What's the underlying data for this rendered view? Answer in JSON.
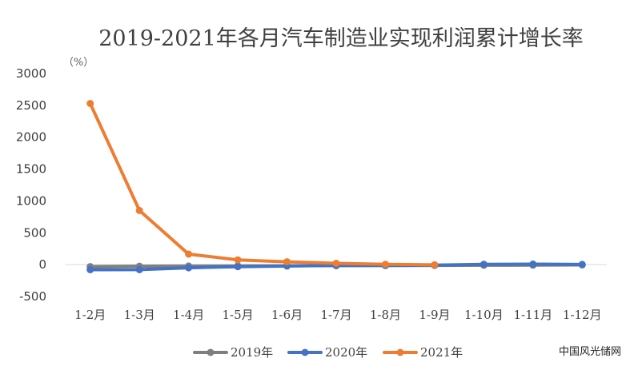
{
  "chart_data": {
    "type": "line",
    "title": "2019-2021年各月汽车制造业实现利润累计增长率",
    "unit_label": "（%）",
    "categories": [
      "1-2月",
      "1-3月",
      "1-4月",
      "1-5月",
      "1-6月",
      "1-7月",
      "1-8月",
      "1-9月",
      "1-10月",
      "1-11月",
      "1-12月"
    ],
    "yticks": [
      3000,
      2500,
      2000,
      1500,
      1000,
      500,
      0,
      -500
    ],
    "ylim": [
      -500,
      3000
    ],
    "grid": false,
    "legend_position": "bottom",
    "series": [
      {
        "name": "2019年",
        "color": "#7f7f7f",
        "values": [
          -31,
          -25,
          -22,
          -20,
          -18,
          -16,
          -14,
          -12,
          -10,
          -8,
          -5
        ]
      },
      {
        "name": "2020年",
        "color": "#4472c4",
        "values": [
          -80,
          -78,
          -50,
          -32,
          -22,
          -15,
          -12,
          -8,
          5,
          8,
          3
        ]
      },
      {
        "name": "2021年",
        "color": "#ed7d31",
        "values": [
          2530,
          850,
          165,
          75,
          45,
          20,
          5,
          -3,
          null,
          null,
          null
        ]
      }
    ]
  },
  "watermark": "中国风光储网"
}
